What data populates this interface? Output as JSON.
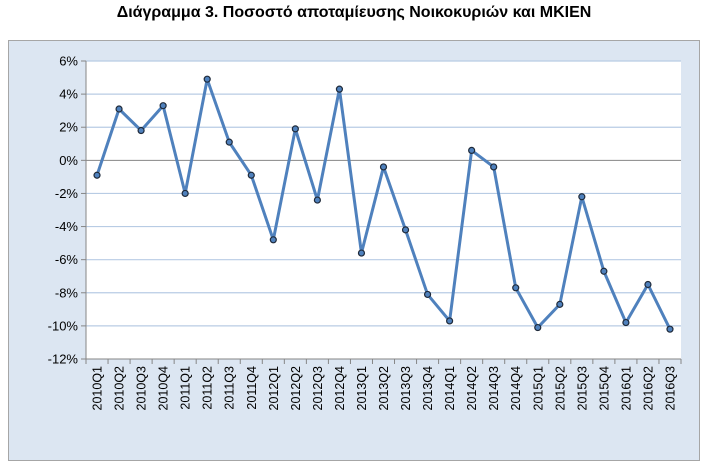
{
  "title": "Διάγραμμα 3. Ποσοστό αποταμίευσης Νοικοκυριών και ΜΚΙΕΝ",
  "chart_data": {
    "type": "line",
    "title": "Διάγραμμα 3. Ποσοστό αποταμίευσης Νοικοκυριών και ΜΚΙΕΝ",
    "xlabel": "",
    "ylabel": "",
    "categories": [
      "2010Q1",
      "2010Q2",
      "2010Q3",
      "2010Q4",
      "2011Q1",
      "2011Q2",
      "2011Q3",
      "2011Q4",
      "2012Q1",
      "2012Q2",
      "2012Q3",
      "2012Q4",
      "2013Q1",
      "2013Q2",
      "2013Q3",
      "2013Q4",
      "2014Q1",
      "2014Q2",
      "2014Q3",
      "2014Q4",
      "2015Q1",
      "2015Q2",
      "2015Q3",
      "2015Q4",
      "2016Q1",
      "2016Q2",
      "2016Q3"
    ],
    "series": [
      {
        "values": [
          -0.9,
          3.1,
          1.8,
          3.3,
          -2.0,
          4.9,
          1.1,
          -0.9,
          -4.8,
          1.9,
          -2.4,
          4.3,
          -5.6,
          -0.4,
          -4.2,
          -8.1,
          -9.7,
          0.6,
          -0.4,
          -7.7,
          -10.1,
          -8.7,
          -2.2,
          -6.7,
          -9.8,
          -7.5,
          -10.2
        ],
        "color": "#4f81bd"
      }
    ],
    "ylim": [
      -12,
      6
    ],
    "yticks": [
      -12,
      -10,
      -8,
      -6,
      -4,
      -2,
      0,
      2,
      4,
      6
    ],
    "ytick_labels": [
      "-12%",
      "-10%",
      "-8%",
      "-6%",
      "-4%",
      "-2%",
      "0%",
      "2%",
      "4%",
      "6%"
    ],
    "grid": true,
    "legend": "none"
  }
}
